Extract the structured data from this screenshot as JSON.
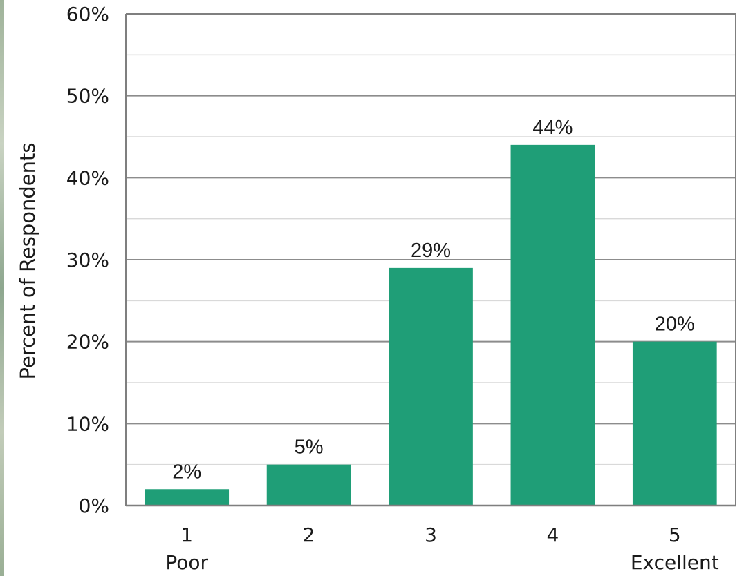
{
  "chart_data": {
    "type": "bar",
    "categories": [
      "1",
      "2",
      "3",
      "4",
      "5"
    ],
    "category_sublabels": [
      "Poor",
      "",
      "",
      "",
      "Excellent"
    ],
    "values": [
      2,
      5,
      29,
      44,
      20
    ],
    "data_labels": [
      "2%",
      "5%",
      "29%",
      "44%",
      "20%"
    ],
    "title": "",
    "xlabel": "",
    "ylabel": "Percent of Respondents",
    "ylim": [
      0,
      60
    ],
    "yticks": [
      0,
      10,
      20,
      30,
      40,
      50,
      60
    ],
    "ytick_labels": [
      "0%",
      "10%",
      "20%",
      "30%",
      "40%",
      "50%",
      "60%"
    ],
    "grid": true,
    "minor_grid": true,
    "legend": "none",
    "bar_color": "#1f9e77",
    "grid_color": "#8c8c8c",
    "minor_grid_color": "#d9d9d9"
  }
}
